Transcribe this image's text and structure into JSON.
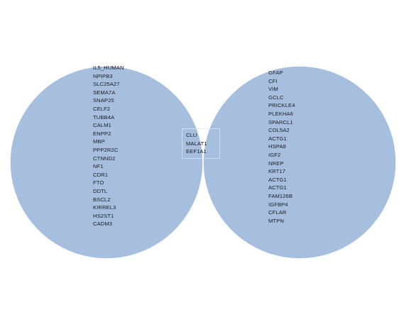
{
  "diagram": {
    "colors": {
      "circle_fill": "#a7bfdf",
      "circle_stroke": "#ffffff",
      "overlap_fill": "#7d9dcb"
    },
    "left_only": [
      "IL5_HUMAN",
      "NPIPB3",
      "SLC25A27",
      "SEMA7A",
      "SNAP25",
      "CELF2",
      "TUBB4A",
      "CALM1",
      "ENPP2",
      "MBP",
      "PPP2R2C",
      "CTNND2",
      "NF1",
      "CDR1",
      "FTO",
      "DDTL",
      "BSCL2",
      "KIRREL3",
      "HS2ST1",
      "CADM3"
    ],
    "overlap": [
      "CLU",
      "MALAT1",
      "EEF1A1"
    ],
    "right_only": [
      "GFAP",
      "CFI",
      "VIM",
      "GCLC",
      "PRICKLE4",
      "PLEKHA6",
      "SPARCL1",
      "COL5A2",
      "ACTG1",
      "HSPA8",
      "IGF2",
      "NREP",
      "KRT17",
      "ACTG1",
      "ACTG1",
      "FAM126B",
      "IGFBP4",
      "CFLAR",
      "MTPN"
    ]
  }
}
